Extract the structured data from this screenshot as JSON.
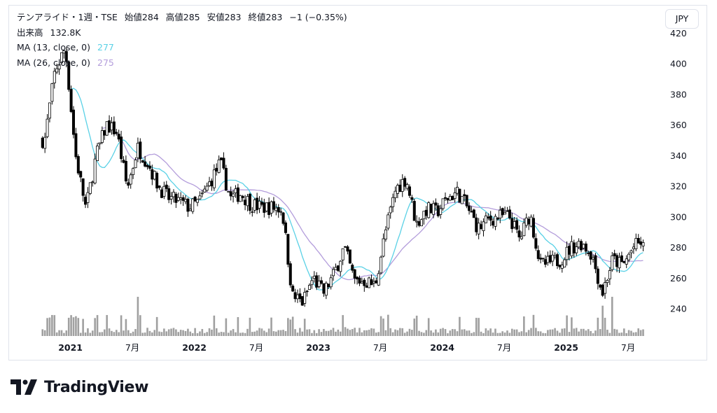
{
  "header": {
    "symbol_line": "テンアライド・1週・TSE",
    "open_label": "始値",
    "open_value": "284",
    "high_label": "高値",
    "high_value": "285",
    "low_label": "安値",
    "low_value": "283",
    "close_label": "終値",
    "close_value": "283",
    "change": "−1 (−0.35%)",
    "volume_label": "出来高",
    "volume_value": "132.8K",
    "ma13_label": "MA (13, close, 0)",
    "ma13_value": "277",
    "ma26_label": "MA (26, close, 0)",
    "ma26_value": "275"
  },
  "currency": "JPY",
  "brand": "TradingView",
  "colors": {
    "up": "#ffffff",
    "down": "#000000",
    "candle_border": "#000000",
    "ma13": "#5ad1e6",
    "ma26": "#b39ddb",
    "volume": "#a0a0a0"
  },
  "chart_data": {
    "type": "candlestick",
    "interval": "1 week",
    "y_axis": {
      "ticks": [
        240,
        260,
        280,
        300,
        320,
        340,
        360,
        380,
        400,
        420
      ],
      "ylim": [
        222,
        424
      ]
    },
    "x_axis_labels": [
      "2021",
      "7月",
      "2022",
      "7月",
      "2023",
      "7月",
      "2024",
      "7月",
      "2025",
      "7月"
    ],
    "x_axis_label_dates": [
      "2021-01",
      "2021-07",
      "2022-01",
      "2022-07",
      "2023-01",
      "2023-07",
      "2024-01",
      "2024-07",
      "2025-01",
      "2025-07"
    ],
    "date_range": [
      "2020-10",
      "2025-08"
    ],
    "close_anchors": [
      [
        "2020-10",
        350
      ],
      [
        "2020-11",
        395
      ],
      [
        "2020-12",
        410
      ],
      [
        "2021-01",
        340
      ],
      [
        "2021-02",
        305
      ],
      [
        "2021-03",
        340
      ],
      [
        "2021-04",
        360
      ],
      [
        "2021-05",
        355
      ],
      [
        "2021-06",
        318
      ],
      [
        "2021-07",
        345
      ],
      [
        "2021-08",
        335
      ],
      [
        "2021-09",
        320
      ],
      [
        "2021-10",
        312
      ],
      [
        "2021-11",
        310
      ],
      [
        "2021-12",
        306
      ],
      [
        "2022-01",
        310
      ],
      [
        "2022-02",
        322
      ],
      [
        "2022-03",
        335
      ],
      [
        "2022-04",
        312
      ],
      [
        "2022-05",
        315
      ],
      [
        "2022-06",
        308
      ],
      [
        "2022-07",
        306
      ],
      [
        "2022-08",
        306
      ],
      [
        "2022-09",
        305
      ],
      [
        "2022-10",
        248
      ],
      [
        "2022-11",
        244
      ],
      [
        "2022-12",
        260
      ],
      [
        "2023-01",
        250
      ],
      [
        "2023-02",
        262
      ],
      [
        "2023-03",
        280
      ],
      [
        "2023-04",
        258
      ],
      [
        "2023-05",
        258
      ],
      [
        "2023-06",
        255
      ],
      [
        "2023-07",
        290
      ],
      [
        "2023-08",
        318
      ],
      [
        "2023-09",
        325
      ],
      [
        "2023-10",
        295
      ],
      [
        "2023-11",
        305
      ],
      [
        "2023-12",
        303
      ],
      [
        "2024-01",
        312
      ],
      [
        "2024-02",
        316
      ],
      [
        "2024-03",
        305
      ],
      [
        "2024-04",
        292
      ],
      [
        "2024-05",
        298
      ],
      [
        "2024-06",
        300
      ],
      [
        "2024-07",
        300
      ],
      [
        "2024-08",
        285
      ],
      [
        "2024-09",
        302
      ],
      [
        "2024-10",
        268
      ],
      [
        "2024-11",
        270
      ],
      [
        "2024-12",
        272
      ],
      [
        "2025-01",
        280
      ],
      [
        "2025-02",
        283
      ],
      [
        "2025-03",
        275
      ],
      [
        "2025-04",
        250
      ],
      [
        "2025-05",
        272
      ],
      [
        "2025-06",
        268
      ],
      [
        "2025-07",
        280
      ],
      [
        "2025-08",
        284
      ]
    ],
    "ma13_last": 277,
    "ma26_last": 275,
    "volume_scale_max": 250000
  }
}
